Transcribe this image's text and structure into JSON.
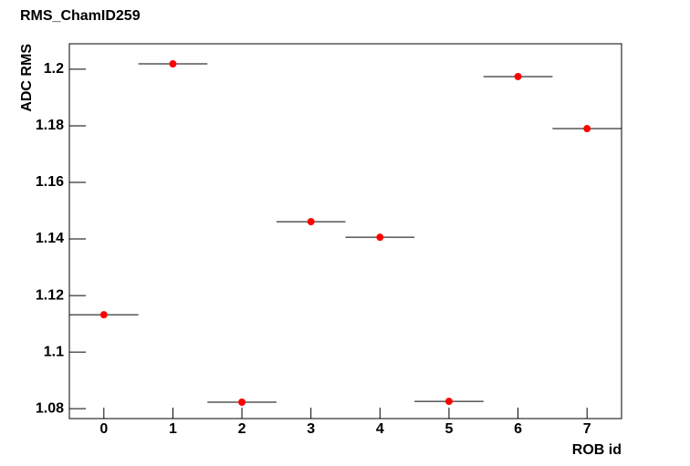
{
  "chart_data": {
    "type": "scatter",
    "title": "RMS_ChamID259",
    "x_label": "ROB id",
    "y_label": "ADC RMS",
    "x": [
      0,
      1,
      2,
      3,
      4,
      5,
      6,
      7
    ],
    "values": [
      1.1132,
      1.2019,
      1.0823,
      1.1461,
      1.1406,
      1.0826,
      1.1974,
      1.179
    ],
    "xerr": [
      0.5,
      0.5,
      0.5,
      0.5,
      0.5,
      0.5,
      0.5,
      0.5
    ],
    "color": "#ff0000",
    "xlim": [
      -0.5,
      7.5
    ],
    "xticks": [
      0,
      1,
      2,
      3,
      4,
      5,
      6,
      7
    ],
    "ylim": [
      1.0765,
      1.209
    ],
    "yticks": [
      1.08,
      1.1,
      1.12,
      1.14,
      1.16,
      1.18,
      1.2
    ],
    "grid": false
  }
}
